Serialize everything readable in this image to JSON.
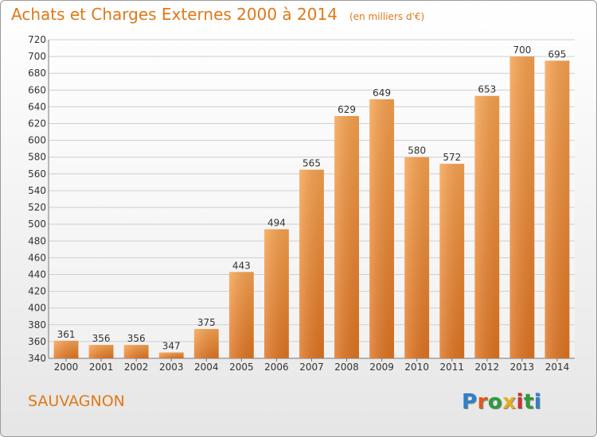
{
  "chart_data": {
    "type": "bar",
    "title": "Achats et Charges Externes 2000 à 2014",
    "subtitle": "(en milliers d'€)",
    "categories": [
      "2000",
      "2001",
      "2002",
      "2003",
      "2004",
      "2005",
      "2006",
      "2007",
      "2008",
      "2009",
      "2010",
      "2011",
      "2012",
      "2013",
      "2014"
    ],
    "values": [
      361,
      356,
      356,
      347,
      375,
      443,
      494,
      565,
      629,
      649,
      580,
      572,
      653,
      700,
      695
    ],
    "ylim": [
      340,
      720
    ],
    "yticks": [
      340,
      360,
      380,
      400,
      420,
      440,
      460,
      480,
      500,
      520,
      540,
      560,
      580,
      600,
      620,
      640,
      660,
      680,
      700,
      720
    ],
    "grid": true,
    "bar_color": "#f0923a"
  },
  "footer": {
    "place": "SAUVAGNON",
    "logo": "Proxiti"
  }
}
